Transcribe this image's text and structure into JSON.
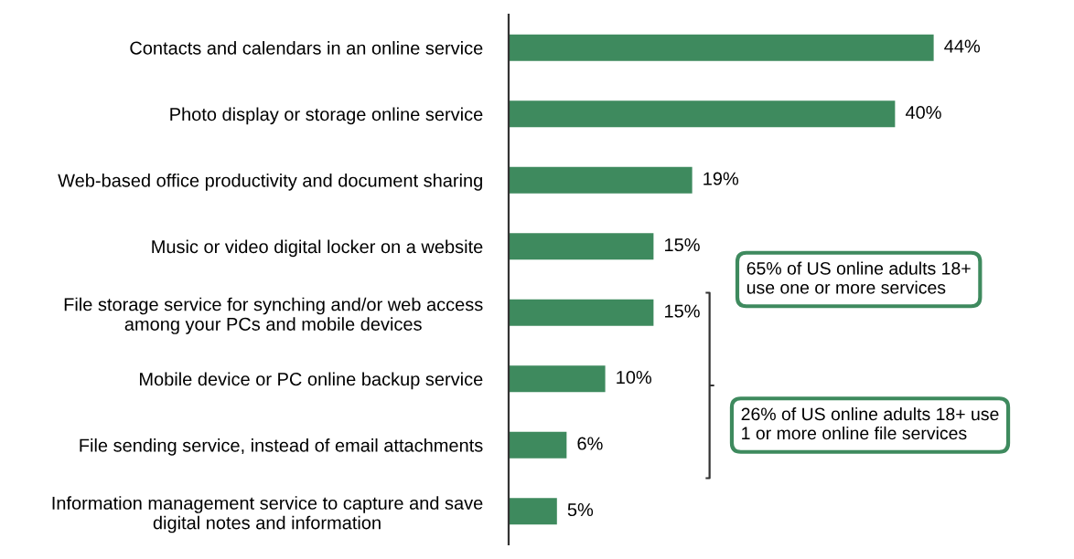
{
  "chart_data": {
    "type": "bar",
    "orientation": "horizontal",
    "categories": [
      "Contacts and calendars in an online service",
      "Photo display or storage online service",
      "Web-based office productivity and document sharing",
      "Music or video digital locker on a website",
      "File storage service for synching and/or web access\namong your PCs and mobile devices",
      "Mobile device or PC online backup service",
      "File sending service, instead of email attachments",
      "Information management service to capture and save\ndigital notes and information"
    ],
    "values": [
      44,
      40,
      19,
      15,
      15,
      10,
      6,
      5
    ],
    "value_labels": [
      "44%",
      "40%",
      "19%",
      "15%",
      "15%",
      "10%",
      "6%",
      "5%"
    ],
    "color": "#3e8a5e",
    "annotations": [
      "65% of US online adults 18+\nuse one or more services",
      "26% of US online adults 18+ use\n1 or more online file services"
    ]
  }
}
